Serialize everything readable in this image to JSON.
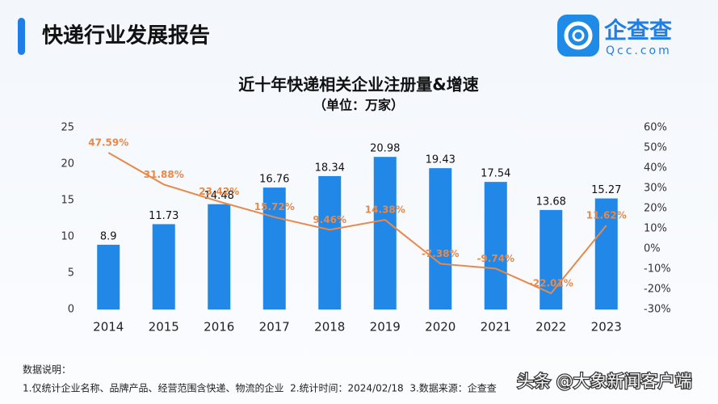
{
  "header": {
    "title": "快递行业发展报告",
    "logo_text": "企查查",
    "logo_sub": "Qcc.com"
  },
  "chart_data": {
    "type": "bar",
    "title": "近十年快递相关企业注册量&增速",
    "subtitle": "（单位：万家）",
    "categories": [
      "2014",
      "2015",
      "2016",
      "2017",
      "2018",
      "2019",
      "2020",
      "2021",
      "2022",
      "2023"
    ],
    "series": [
      {
        "type": "bar",
        "color": "#2188e8",
        "values": [
          8.9,
          11.73,
          14.48,
          16.76,
          18.34,
          20.98,
          19.43,
          17.54,
          13.68,
          15.27
        ]
      },
      {
        "type": "line",
        "axis": "y2",
        "color": "#e8894a",
        "values": [
          47.59,
          31.88,
          23.42,
          15.72,
          9.46,
          14.38,
          -7.38,
          -9.74,
          -22.01,
          11.62
        ],
        "value_labels": [
          "47.59%",
          "31.88%",
          "23.42%",
          "15.72%",
          "9.46%",
          "14.38%",
          "-7.38%",
          "-9.74%",
          "-22.01%",
          "11.62%"
        ]
      }
    ],
    "ylim": [
      0,
      25
    ],
    "yticks": [
      0,
      5,
      10,
      15,
      20,
      25
    ],
    "y2lim": [
      -30,
      60
    ],
    "y2ticks": [
      {
        "value": -30,
        "label": "-30%"
      },
      {
        "value": -20,
        "label": "-20%"
      },
      {
        "value": -10,
        "label": "-10%"
      },
      {
        "value": 0,
        "label": "0%"
      },
      {
        "value": 10,
        "label": "10%"
      },
      {
        "value": 20,
        "label": "20%"
      },
      {
        "value": 30,
        "label": "30%"
      },
      {
        "value": 40,
        "label": "40%"
      },
      {
        "value": 50,
        "label": "50%"
      },
      {
        "value": 60,
        "label": "60%"
      }
    ],
    "grid": false
  },
  "notes": {
    "heading": "数据说明：",
    "text": "1.仅统计企业名称、品牌产品、经营范围含快递、物流的企业  2.统计时间：2024/02/18  3.数据来源：企查查"
  },
  "watermark": "头条 @大象新闻客户端"
}
